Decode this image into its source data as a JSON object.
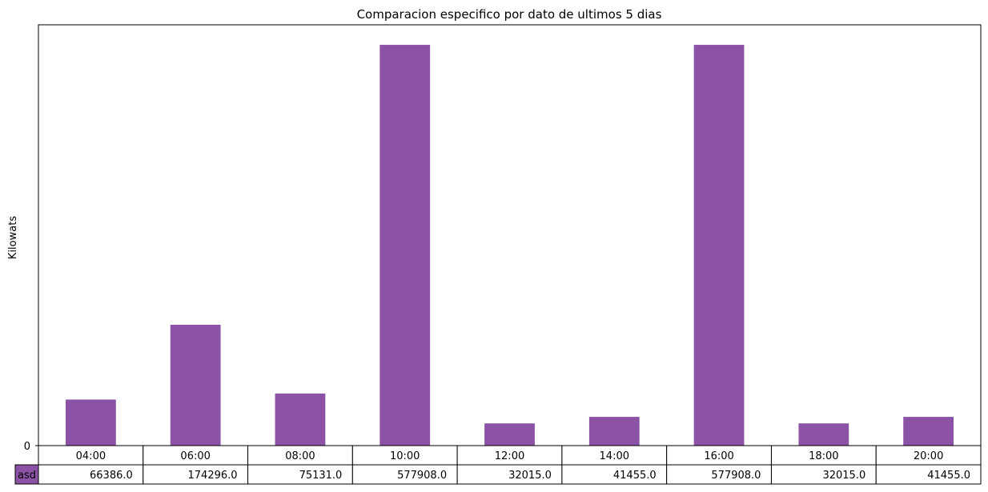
{
  "chart_data": {
    "type": "bar",
    "title": "Comparacion especifico por dato de ultimos 5 dias",
    "xlabel": "",
    "ylabel": "Kilowats",
    "categories": [
      "04:00",
      "06:00",
      "08:00",
      "10:00",
      "12:00",
      "14:00",
      "16:00",
      "18:00",
      "20:00"
    ],
    "series": [
      {
        "name": "asd",
        "color": "#8c52a6",
        "values": [
          66386.0,
          174296.0,
          75131.0,
          577908.0,
          32015.0,
          41455.0,
          577908.0,
          32015.0,
          41455.0
        ],
        "value_labels": [
          "66386.0",
          "174296.0",
          "75131.0",
          "577908.0",
          "32015.0",
          "41455.0",
          "577908.0",
          "32015.0",
          "41455.0"
        ]
      }
    ],
    "ylim": [
      0,
      606804
    ],
    "y_ticks": [
      "0"
    ],
    "grid": false,
    "legend": "table-row-label"
  }
}
